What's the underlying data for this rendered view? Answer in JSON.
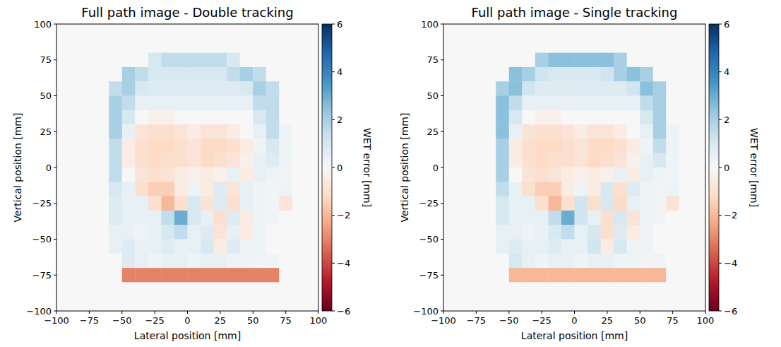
{
  "chart_data": [
    {
      "type": "heatmap",
      "title": "Full path image - Double tracking",
      "x_label": "Lateral position [mm]",
      "y_label": "Vertical position [mm]",
      "xlim": [
        -100,
        100
      ],
      "ylim": [
        -100,
        100
      ],
      "xticks": [
        {
          "value": -100,
          "label": "−100"
        },
        {
          "value": -75,
          "label": "−75"
        },
        {
          "value": -50,
          "label": "−50"
        },
        {
          "value": -25,
          "label": "−25"
        },
        0,
        25,
        50,
        75,
        100
      ],
      "yticks": [
        {
          "value": -100,
          "label": "−100"
        },
        {
          "value": -75,
          "label": "−75"
        },
        {
          "value": -50,
          "label": "−50"
        },
        {
          "value": -25,
          "label": "−25"
        },
        0,
        25,
        50,
        75,
        100
      ],
      "grid": false,
      "x": [
        -95,
        -85,
        -75,
        -65,
        -55,
        -45,
        -35,
        -25,
        -15,
        -5,
        5,
        15,
        25,
        35,
        45,
        55,
        65,
        75,
        85,
        95
      ],
      "y": [
        95,
        85,
        75,
        65,
        55,
        45,
        35,
        25,
        15,
        5,
        -5,
        -15,
        -25,
        -35,
        -45,
        -55,
        -65,
        -75,
        -85,
        -95
      ],
      "z": [
        [
          0,
          0,
          0,
          0,
          0,
          0,
          0,
          0,
          0,
          0,
          0,
          0,
          0,
          0,
          0,
          0,
          0,
          0,
          0,
          0
        ],
        [
          0,
          0,
          0,
          0,
          0,
          0,
          0,
          0,
          0,
          0,
          0,
          0,
          0,
          0,
          0,
          0,
          0,
          0,
          0,
          0
        ],
        [
          0,
          0,
          0,
          0,
          0,
          0,
          0,
          1,
          1.5,
          1.5,
          1.5,
          1.5,
          1.5,
          1,
          0,
          0,
          0,
          0,
          0,
          0
        ],
        [
          0,
          0,
          0,
          0,
          0,
          2,
          1.5,
          1,
          1,
          1,
          1,
          1,
          1,
          1.5,
          2,
          1.5,
          0,
          0,
          0,
          0
        ],
        [
          0,
          0,
          0,
          0,
          1.5,
          2,
          1,
          0.8,
          0.8,
          0.8,
          0.8,
          0.8,
          0.8,
          0.8,
          1,
          2,
          1.5,
          0,
          0,
          0
        ],
        [
          0,
          0,
          0,
          0,
          2,
          1.5,
          0.5,
          0.5,
          0.5,
          0.5,
          0.5,
          0.5,
          0.5,
          0.5,
          0.5,
          1.5,
          1.5,
          0,
          0,
          0
        ],
        [
          0,
          0,
          0,
          0,
          2,
          1,
          0,
          -0.3,
          -0.3,
          0,
          0,
          0,
          0,
          0,
          0,
          1,
          1.5,
          0,
          0,
          0
        ],
        [
          0,
          0,
          0,
          0,
          2,
          0.5,
          -0.8,
          -1,
          -1,
          -0.8,
          -0.5,
          -0.8,
          -0.8,
          -0.5,
          0,
          0.5,
          1.5,
          0.3,
          0,
          0
        ],
        [
          0,
          0,
          0,
          0,
          1.5,
          -0.5,
          -1,
          -1.2,
          -1.2,
          -1,
          -0.8,
          -1.2,
          -1.2,
          -1,
          -0.5,
          0.3,
          1,
          0.3,
          0,
          0
        ],
        [
          0,
          0,
          0,
          0,
          1.5,
          -0.5,
          -1,
          -1.2,
          -1,
          -1,
          -0.8,
          -1.2,
          -1,
          -0.8,
          -0.3,
          0.5,
          0.8,
          0.3,
          0,
          0
        ],
        [
          0,
          0,
          0,
          0,
          1.5,
          0,
          -0.8,
          -1,
          -0.8,
          -0.5,
          -0.3,
          -0.5,
          -0.3,
          0.5,
          -0.5,
          0.5,
          0.3,
          0.2,
          0,
          0
        ],
        [
          0,
          0,
          0,
          0,
          1,
          0.5,
          -1,
          -1.5,
          -1.5,
          -0.5,
          0.3,
          -0.5,
          0.8,
          -0.8,
          0.5,
          0.3,
          0.2,
          0.3,
          0,
          0
        ],
        [
          0,
          0,
          0,
          0,
          0.8,
          0.5,
          0.5,
          -1,
          -2,
          -1,
          1,
          -0.8,
          0.8,
          -1,
          0.5,
          0.3,
          0.2,
          -0.8,
          0,
          0
        ],
        [
          0,
          0,
          0,
          0,
          0.8,
          0.5,
          0.5,
          0.5,
          1.5,
          3,
          1,
          0.5,
          -1,
          0.8,
          -0.5,
          0.3,
          0.2,
          0,
          0,
          0
        ],
        [
          0,
          0,
          0,
          0,
          0.5,
          0.5,
          0.3,
          0.5,
          1,
          1.5,
          0.5,
          0.8,
          -0.8,
          0.5,
          -0.5,
          0.3,
          0,
          0,
          0,
          0
        ],
        [
          0,
          0,
          0,
          0,
          0.5,
          0.8,
          0.5,
          0.5,
          0.8,
          0.5,
          0.5,
          1,
          -0.5,
          0.8,
          0.3,
          0.3,
          0,
          0,
          0,
          0
        ],
        [
          0,
          0,
          0,
          0,
          0,
          0.8,
          0.5,
          0.3,
          0.5,
          0.5,
          0.3,
          0.5,
          0.5,
          0.3,
          0.3,
          0.2,
          0.2,
          0,
          0,
          0
        ],
        [
          0,
          0,
          0,
          0,
          0,
          -3,
          -3,
          -3,
          -3,
          -3,
          -3,
          -3,
          -3,
          -3,
          -3,
          -3,
          -3,
          0,
          0,
          0
        ],
        [
          0,
          0,
          0,
          0,
          0,
          0,
          0,
          0,
          0,
          0,
          0,
          0,
          0,
          0,
          0,
          0,
          0,
          0,
          0,
          0
        ],
        [
          0,
          0,
          0,
          0,
          0,
          0,
          0,
          0,
          0,
          0,
          0,
          0,
          0,
          0,
          0,
          0,
          0,
          0,
          0,
          0
        ]
      ],
      "colorbar": {
        "label": "WET error [mm]",
        "range": [
          -6,
          6
        ],
        "ticks": [
          {
            "value": -6,
            "label": "−6"
          },
          {
            "value": -4,
            "label": "−4"
          },
          {
            "value": -2,
            "label": "−2"
          },
          0,
          2,
          4,
          6
        ]
      }
    },
    {
      "type": "heatmap",
      "title": "Full path image - Single tracking",
      "x_label": "Lateral position [mm]",
      "y_label": "Vertical position [mm]",
      "xlim": [
        -100,
        100
      ],
      "ylim": [
        -100,
        100
      ],
      "xticks": [
        {
          "value": -100,
          "label": "−100"
        },
        {
          "value": -75,
          "label": "−75"
        },
        {
          "value": -50,
          "label": "−50"
        },
        {
          "value": -25,
          "label": "−25"
        },
        0,
        25,
        50,
        75,
        100
      ],
      "yticks": [
        {
          "value": -100,
          "label": "−100"
        },
        {
          "value": -75,
          "label": "−75"
        },
        {
          "value": -50,
          "label": "−50"
        },
        {
          "value": -25,
          "label": "−25"
        },
        0,
        25,
        50,
        75,
        100
      ],
      "grid": false,
      "x": [
        -95,
        -85,
        -75,
        -65,
        -55,
        -45,
        -35,
        -25,
        -15,
        -5,
        5,
        15,
        25,
        35,
        45,
        55,
        65,
        75,
        85,
        95
      ],
      "y": [
        95,
        85,
        75,
        65,
        55,
        45,
        35,
        25,
        15,
        5,
        -5,
        -15,
        -25,
        -35,
        -45,
        -55,
        -65,
        -75,
        -85,
        -95
      ],
      "z": [
        [
          0,
          0,
          0,
          0,
          0,
          0,
          0,
          0,
          0,
          0,
          0,
          0,
          0,
          0,
          0,
          0,
          0,
          0,
          0,
          0
        ],
        [
          0,
          0,
          0,
          0,
          0,
          0,
          0,
          0,
          0,
          0,
          0,
          0,
          0,
          0,
          0,
          0,
          0,
          0,
          0,
          0
        ],
        [
          0,
          0,
          0,
          0,
          0,
          0,
          0,
          2,
          2.5,
          2.5,
          2.5,
          2.5,
          2.5,
          2,
          0,
          0,
          0,
          0,
          0,
          0
        ],
        [
          0,
          0,
          0,
          0,
          0,
          2.5,
          2,
          1.2,
          1,
          1,
          1,
          1,
          1.2,
          2,
          2.5,
          2,
          0,
          0,
          0,
          0
        ],
        [
          0,
          0,
          0,
          0,
          2,
          2.5,
          1.2,
          0.8,
          0.8,
          0.8,
          0.8,
          0.8,
          0.8,
          0.8,
          1.2,
          2.5,
          2,
          0,
          0,
          0
        ],
        [
          0,
          0,
          0,
          0,
          2.5,
          1.5,
          0.5,
          0.5,
          0.5,
          0.5,
          0.5,
          0.5,
          0.5,
          0.5,
          0.5,
          1.5,
          2,
          0,
          0,
          0
        ],
        [
          0,
          0,
          0,
          0,
          2.5,
          1,
          0,
          -0.3,
          -0.3,
          0,
          0,
          0,
          0,
          0,
          0,
          1,
          2,
          0,
          0,
          0
        ],
        [
          0,
          0,
          0,
          0,
          2.5,
          0.5,
          -0.8,
          -1,
          -1,
          -0.8,
          -0.5,
          -0.8,
          -0.8,
          -0.5,
          0,
          0.5,
          2,
          0.3,
          0,
          0
        ],
        [
          0,
          0,
          0,
          0,
          2,
          -0.5,
          -1,
          -1.2,
          -1.2,
          -1,
          -0.8,
          -1.2,
          -1.2,
          -1,
          -0.5,
          0.3,
          1.5,
          0.3,
          0,
          0
        ],
        [
          0,
          0,
          0,
          0,
          2,
          -0.5,
          -1,
          -1.2,
          -1,
          -1,
          -0.8,
          -1.2,
          -1,
          -0.8,
          -0.3,
          0.5,
          1,
          0.3,
          0,
          0
        ],
        [
          0,
          0,
          0,
          0,
          2,
          0,
          -0.8,
          -1,
          -0.8,
          -0.5,
          -0.3,
          -0.5,
          -0.3,
          0.5,
          -0.5,
          0.5,
          0.3,
          0.2,
          0,
          0
        ],
        [
          0,
          0,
          0,
          0,
          1.5,
          0.5,
          -1,
          -1.5,
          -1.5,
          -0.5,
          0.3,
          -0.5,
          1,
          -1,
          0.8,
          0.3,
          0.2,
          0.3,
          0,
          0
        ],
        [
          0,
          0,
          0,
          0,
          1,
          0.5,
          0.5,
          -1,
          -2,
          -1,
          1.2,
          -1,
          1,
          -1.2,
          0.5,
          0.3,
          0.2,
          -0.8,
          0,
          0
        ],
        [
          0,
          0,
          0,
          0,
          1,
          0.5,
          0.5,
          0.5,
          1.5,
          3,
          1.2,
          0.5,
          -1,
          1,
          -0.8,
          0.3,
          0.2,
          0,
          0,
          0
        ],
        [
          0,
          0,
          0,
          0,
          0.5,
          0.5,
          0.3,
          0.5,
          1,
          1.5,
          0.5,
          1,
          -1,
          0.8,
          -0.5,
          0.3,
          0,
          0,
          0,
          0
        ],
        [
          0,
          0,
          0,
          0,
          0.5,
          0.8,
          0.5,
          0.5,
          0.8,
          0.5,
          0.5,
          1.2,
          -0.5,
          1,
          0.3,
          0.3,
          0,
          0,
          0,
          0
        ],
        [
          0,
          0,
          0,
          0,
          0,
          1,
          0.5,
          0.3,
          0.5,
          0.5,
          0.3,
          0.5,
          0.5,
          0.3,
          0.3,
          0.2,
          0.2,
          0,
          0,
          0
        ],
        [
          0,
          0,
          0,
          0,
          0,
          -2,
          -2,
          -2,
          -2,
          -2,
          -2,
          -2,
          -2,
          -2,
          -2,
          -2,
          -2,
          0,
          0,
          0
        ],
        [
          0,
          0,
          0,
          0,
          0,
          0,
          0,
          0,
          0,
          0,
          0,
          0,
          0,
          0,
          0,
          0,
          0,
          0,
          0,
          0
        ],
        [
          0,
          0,
          0,
          0,
          0,
          0,
          0,
          0,
          0,
          0,
          0,
          0,
          0,
          0,
          0,
          0,
          0,
          0,
          0,
          0
        ]
      ],
      "colorbar": {
        "label": "WET error [mm]",
        "range": [
          -6,
          6
        ],
        "ticks": [
          {
            "value": -6,
            "label": "−6"
          },
          {
            "value": -4,
            "label": "−4"
          },
          {
            "value": -2,
            "label": "−2"
          },
          0,
          2,
          4,
          6
        ]
      }
    }
  ]
}
